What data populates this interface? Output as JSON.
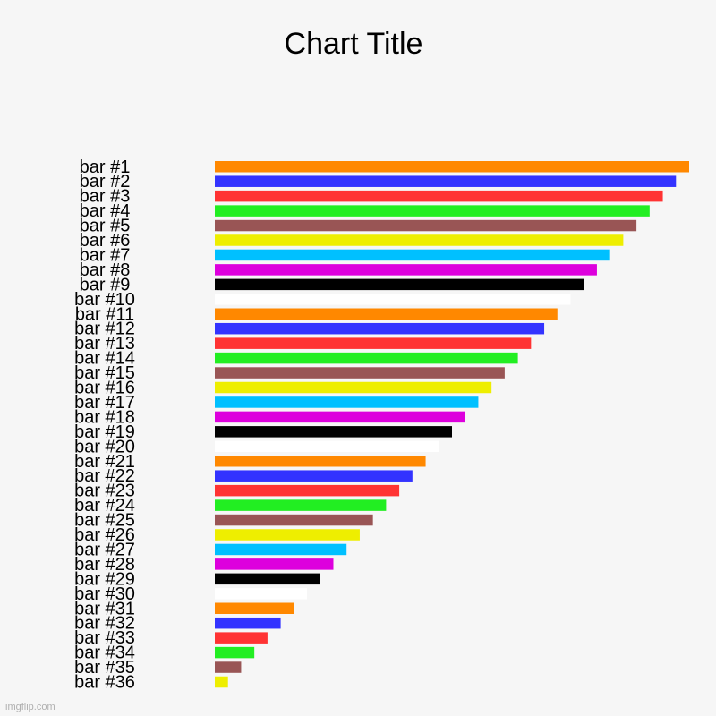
{
  "chart_data": {
    "type": "bar",
    "orientation": "horizontal",
    "title": "Chart Title",
    "xlabel": "",
    "ylabel": "",
    "grid": false,
    "legend": "none",
    "categories": [
      "bar #1",
      "bar #2",
      "bar #3",
      "bar #4",
      "bar #5",
      "bar #6",
      "bar #7",
      "bar #8",
      "bar #9",
      "bar #10",
      "bar #11",
      "bar #12",
      "bar #13",
      "bar #14",
      "bar #15",
      "bar #16",
      "bar #17",
      "bar #18",
      "bar #19",
      "bar #20",
      "bar #21",
      "bar #22",
      "bar #23",
      "bar #24",
      "bar #25",
      "bar #26",
      "bar #27",
      "bar #28",
      "bar #29",
      "bar #30",
      "bar #31",
      "bar #32",
      "bar #33",
      "bar #34",
      "bar #35",
      "bar #36"
    ],
    "values": [
      36,
      35,
      34,
      33,
      32,
      31,
      30,
      29,
      28,
      27,
      26,
      25,
      24,
      23,
      22,
      21,
      20,
      19,
      18,
      17,
      16,
      15,
      14,
      13,
      12,
      11,
      10,
      9,
      8,
      7,
      6,
      5,
      4,
      3,
      2,
      1
    ],
    "colors": [
      "#ff8800",
      "#3333ff",
      "#ff3333",
      "#22ee22",
      "#995555",
      "#eeee00",
      "#00c0ff",
      "#dd00dd",
      "#000000",
      "#ffffff"
    ]
  },
  "watermark": "imgflip.com"
}
